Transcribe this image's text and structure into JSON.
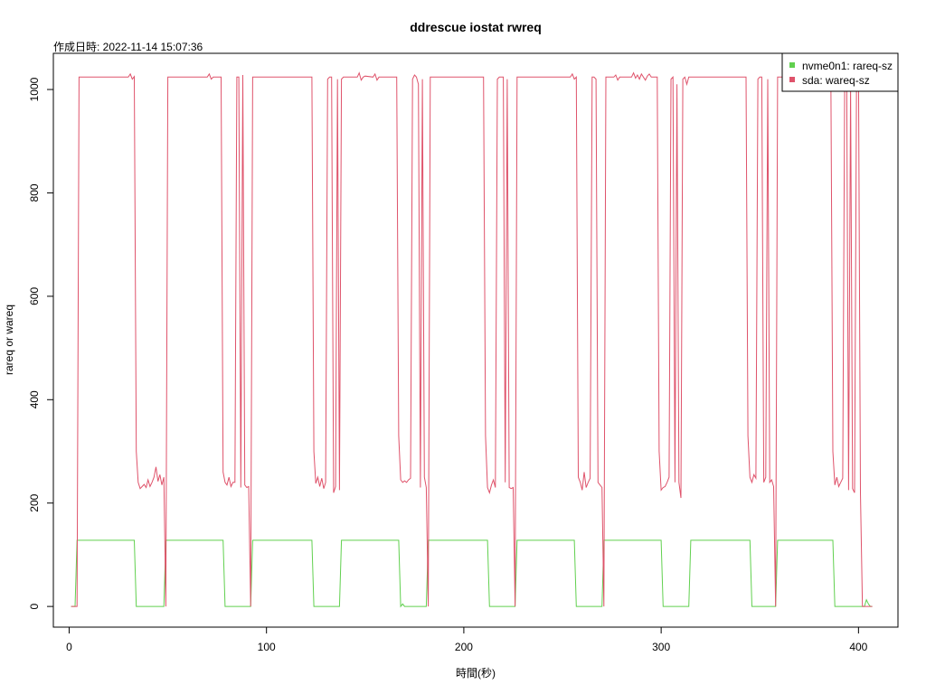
{
  "chart_data": {
    "type": "line",
    "title": "ddrescue iostat rwreq",
    "subtitle": "作成日時: 2022-11-14 15:07:36",
    "xlabel": "時間(秒)",
    "ylabel": "rareq or wareq",
    "xlim": [
      -8,
      420
    ],
    "ylim": [
      -40,
      1070
    ],
    "xticks": [
      0,
      100,
      200,
      300,
      400
    ],
    "yticks": [
      0,
      200,
      400,
      600,
      800,
      1000
    ],
    "grid": false,
    "legend_position": "top-right",
    "series": [
      {
        "name": "nvme0n1: rareq-sz",
        "color": "#61D04F",
        "points": [
          [
            1,
            0
          ],
          [
            2,
            0
          ],
          [
            3,
            0
          ],
          [
            4,
            128
          ],
          [
            5,
            128
          ],
          [
            33,
            128
          ],
          [
            34,
            0
          ],
          [
            48,
            0
          ],
          [
            49,
            128
          ],
          [
            78,
            128
          ],
          [
            79,
            0
          ],
          [
            92,
            0
          ],
          [
            93,
            128
          ],
          [
            123,
            128
          ],
          [
            124,
            0
          ],
          [
            137,
            0
          ],
          [
            138,
            128
          ],
          [
            167,
            128
          ],
          [
            168,
            0
          ],
          [
            169,
            5
          ],
          [
            170,
            0
          ],
          [
            181,
            0
          ],
          [
            182,
            128
          ],
          [
            212,
            128
          ],
          [
            213,
            0
          ],
          [
            226,
            0
          ],
          [
            227,
            128
          ],
          [
            256,
            128
          ],
          [
            257,
            0
          ],
          [
            270,
            0
          ],
          [
            271,
            128
          ],
          [
            300,
            128
          ],
          [
            301,
            0
          ],
          [
            314,
            0
          ],
          [
            315,
            128
          ],
          [
            345,
            128
          ],
          [
            346,
            0
          ],
          [
            358,
            0
          ],
          [
            359,
            128
          ],
          [
            387,
            128
          ],
          [
            388,
            0
          ],
          [
            403,
            0
          ],
          [
            404,
            13
          ],
          [
            405,
            5
          ],
          [
            406,
            0
          ],
          [
            407,
            0
          ]
        ]
      },
      {
        "name": "sda: wareq-sz",
        "color": "#DF536B",
        "points": [
          [
            1,
            0
          ],
          [
            2,
            0
          ],
          [
            3,
            0
          ],
          [
            4,
            0
          ],
          [
            5,
            1024
          ],
          [
            30,
            1024
          ],
          [
            31,
            1030
          ],
          [
            32,
            1020
          ],
          [
            33,
            1025
          ],
          [
            34,
            300
          ],
          [
            35,
            240
          ],
          [
            36,
            228
          ],
          [
            37,
            232
          ],
          [
            38,
            236
          ],
          [
            39,
            230
          ],
          [
            40,
            245
          ],
          [
            41,
            232
          ],
          [
            42,
            240
          ],
          [
            43,
            250
          ],
          [
            44,
            270
          ],
          [
            45,
            242
          ],
          [
            46,
            255
          ],
          [
            47,
            235
          ],
          [
            48,
            250
          ],
          [
            49,
            0
          ],
          [
            50,
            1024
          ],
          [
            70,
            1024
          ],
          [
            71,
            1030
          ],
          [
            72,
            1020
          ],
          [
            73,
            1024
          ],
          [
            77,
            1024
          ],
          [
            78,
            260
          ],
          [
            79,
            240
          ],
          [
            80,
            235
          ],
          [
            81,
            250
          ],
          [
            82,
            232
          ],
          [
            83,
            240
          ],
          [
            84,
            240
          ],
          [
            85,
            1024
          ],
          [
            86,
            1024
          ],
          [
            87,
            230
          ],
          [
            88,
            1028
          ],
          [
            89,
            235
          ],
          [
            90,
            230
          ],
          [
            91,
            232
          ],
          [
            92,
            0
          ],
          [
            93,
            1024
          ],
          [
            123,
            1024
          ],
          [
            124,
            300
          ],
          [
            125,
            238
          ],
          [
            126,
            250
          ],
          [
            127,
            232
          ],
          [
            128,
            248
          ],
          [
            129,
            228
          ],
          [
            130,
            240
          ],
          [
            131,
            1020
          ],
          [
            132,
            1024
          ],
          [
            133,
            1024
          ],
          [
            134,
            220
          ],
          [
            135,
            232
          ],
          [
            136,
            1020
          ],
          [
            137,
            225
          ],
          [
            138,
            1020
          ],
          [
            139,
            1024
          ],
          [
            146,
            1024
          ],
          [
            147,
            1032
          ],
          [
            148,
            1018
          ],
          [
            149,
            1024
          ],
          [
            150,
            1026
          ],
          [
            154,
            1024
          ],
          [
            155,
            1030
          ],
          [
            156,
            1018
          ],
          [
            157,
            1024
          ],
          [
            166,
            1024
          ],
          [
            167,
            330
          ],
          [
            168,
            245
          ],
          [
            169,
            240
          ],
          [
            170,
            243
          ],
          [
            171,
            240
          ],
          [
            172,
            245
          ],
          [
            173,
            248
          ],
          [
            174,
            1020
          ],
          [
            175,
            1028
          ],
          [
            176,
            1024
          ],
          [
            177,
            1010
          ],
          [
            178,
            230
          ],
          [
            179,
            1020
          ],
          [
            180,
            250
          ],
          [
            181,
            230
          ],
          [
            182,
            0
          ],
          [
            183,
            1024
          ],
          [
            210,
            1024
          ],
          [
            211,
            330
          ],
          [
            212,
            230
          ],
          [
            213,
            220
          ],
          [
            214,
            235
          ],
          [
            215,
            245
          ],
          [
            216,
            230
          ],
          [
            217,
            1020
          ],
          [
            218,
            1024
          ],
          [
            220,
            1024
          ],
          [
            221,
            240
          ],
          [
            222,
            1020
          ],
          [
            223,
            230
          ],
          [
            224,
            228
          ],
          [
            225,
            230
          ],
          [
            226,
            0
          ],
          [
            227,
            1024
          ],
          [
            254,
            1024
          ],
          [
            255,
            1030
          ],
          [
            256,
            1020
          ],
          [
            257,
            1024
          ],
          [
            258,
            250
          ],
          [
            259,
            240
          ],
          [
            260,
            225
          ],
          [
            261,
            260
          ],
          [
            262,
            230
          ],
          [
            263,
            240
          ],
          [
            264,
            248
          ],
          [
            265,
            1024
          ],
          [
            266,
            1024
          ],
          [
            267,
            1020
          ],
          [
            268,
            240
          ],
          [
            269,
            235
          ],
          [
            270,
            230
          ],
          [
            271,
            0
          ],
          [
            272,
            1024
          ],
          [
            276,
            1024
          ],
          [
            277,
            1028
          ],
          [
            278,
            1018
          ],
          [
            279,
            1024
          ],
          [
            285,
            1024
          ],
          [
            286,
            1032
          ],
          [
            287,
            1022
          ],
          [
            288,
            1028
          ],
          [
            289,
            1020
          ],
          [
            290,
            1030
          ],
          [
            291,
            1024
          ],
          [
            292,
            1018
          ],
          [
            293,
            1026
          ],
          [
            294,
            1030
          ],
          [
            295,
            1024
          ],
          [
            298,
            1024
          ],
          [
            299,
            300
          ],
          [
            300,
            225
          ],
          [
            301,
            230
          ],
          [
            302,
            232
          ],
          [
            303,
            240
          ],
          [
            304,
            250
          ],
          [
            305,
            1020
          ],
          [
            306,
            1024
          ],
          [
            307,
            240
          ],
          [
            308,
            1010
          ],
          [
            309,
            240
          ],
          [
            310,
            210
          ],
          [
            311,
            1020
          ],
          [
            312,
            1024
          ],
          [
            313,
            1010
          ],
          [
            314,
            1024
          ],
          [
            315,
            1024
          ],
          [
            343,
            1024
          ],
          [
            344,
            330
          ],
          [
            345,
            250
          ],
          [
            346,
            240
          ],
          [
            347,
            255
          ],
          [
            348,
            248
          ],
          [
            349,
            1020
          ],
          [
            350,
            1024
          ],
          [
            351,
            1024
          ],
          [
            352,
            240
          ],
          [
            353,
            250
          ],
          [
            354,
            1020
          ],
          [
            355,
            240
          ],
          [
            356,
            245
          ],
          [
            357,
            232
          ],
          [
            358,
            0
          ],
          [
            359,
            1024
          ],
          [
            386,
            1024
          ],
          [
            387,
            300
          ],
          [
            388,
            235
          ],
          [
            389,
            250
          ],
          [
            390,
            232
          ],
          [
            391,
            240
          ],
          [
            392,
            248
          ],
          [
            393,
            1024
          ],
          [
            394,
            1024
          ],
          [
            395,
            225
          ],
          [
            396,
            1010
          ],
          [
            397,
            228
          ],
          [
            398,
            220
          ],
          [
            399,
            1024
          ],
          [
            400,
            1024
          ],
          [
            401,
            220
          ],
          [
            402,
            0
          ],
          [
            403,
            0
          ],
          [
            404,
            0
          ],
          [
            405,
            0
          ],
          [
            406,
            0
          ],
          [
            407,
            0
          ]
        ]
      }
    ]
  }
}
